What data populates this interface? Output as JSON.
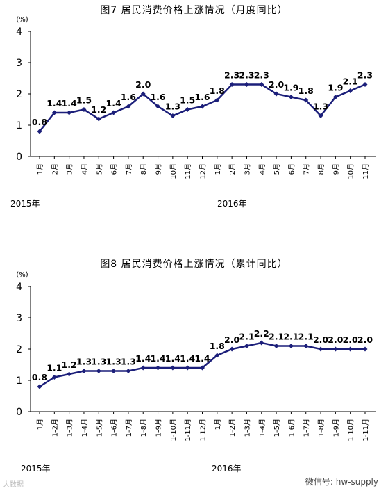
{
  "chart_data": [
    {
      "type": "line",
      "title": "图7  居民消费价格上涨情况（月度同比）",
      "ylabel": "(%)",
      "ylim": [
        0,
        4
      ],
      "yticks": [
        "0",
        "1",
        "2",
        "3",
        "4"
      ],
      "grid": false,
      "categories": [
        "1月",
        "2月",
        "3月",
        "4月",
        "5月",
        "6月",
        "7月",
        "8月",
        "9月",
        "10月",
        "11月",
        "12月",
        "1月",
        "2月",
        "3月",
        "4月",
        "5月",
        "6月",
        "7月",
        "8月",
        "9月",
        "10月",
        "11月"
      ],
      "year_labels": [
        "2015年",
        "2016年"
      ],
      "series": [
        {
          "values": [
            0.8,
            1.4,
            1.4,
            1.5,
            1.2,
            1.4,
            1.6,
            2.0,
            1.6,
            1.3,
            1.5,
            1.6,
            1.8,
            2.3,
            2.3,
            2.3,
            2.0,
            1.9,
            1.8,
            1.3,
            1.9,
            2.1,
            2.3
          ],
          "labels": [
            "0.8",
            "1.4",
            "1.4",
            "1.5",
            "1.2",
            "1.4",
            "1.6",
            "2.0",
            "1.6",
            "1.3",
            "1.5",
            "1.6",
            "1.8",
            "2.3",
            "2.3",
            "2.3",
            "2.0",
            "1.9",
            "1.8",
            "1.3",
            "1.9",
            "2.1",
            "2.3"
          ]
        }
      ]
    },
    {
      "type": "line",
      "title": "图8  居民消费价格上涨情况（累计同比）",
      "ylabel": "(%)",
      "ylim": [
        0,
        4
      ],
      "yticks": [
        "0",
        "1",
        "2",
        "3",
        "4"
      ],
      "grid": false,
      "categories": [
        "1月",
        "1-2月",
        "1-3月",
        "1-4月",
        "1-5月",
        "1-6月",
        "1-7月",
        "1-8月",
        "1-9月",
        "1-10月",
        "1-11月",
        "1-12月",
        "1月",
        "1-2月",
        "1-3月",
        "1-4月",
        "1-5月",
        "1-6月",
        "1-7月",
        "1-8月",
        "1-9月",
        "1-10月",
        "1-11月"
      ],
      "year_labels": [
        "2015年",
        "2016年"
      ],
      "series": [
        {
          "values": [
            0.8,
            1.1,
            1.2,
            1.3,
            1.3,
            1.3,
            1.3,
            1.4,
            1.4,
            1.4,
            1.4,
            1.4,
            1.8,
            2.0,
            2.1,
            2.2,
            2.1,
            2.1,
            2.1,
            2.0,
            2.0,
            2.0,
            2.0
          ],
          "labels": [
            "0.8",
            "1.1",
            "1.2",
            "1.3",
            "1.3",
            "1.3",
            "1.3",
            "1.4",
            "1.4",
            "1.4",
            "1.4",
            "1.4",
            "1.8",
            "2.0",
            "2.1",
            "2.2",
            "2.1",
            "2.1",
            "2.1",
            "2.0",
            "2.0",
            "2.0",
            "2.0"
          ]
        }
      ]
    }
  ],
  "colors": {
    "line": "#1c1f7a",
    "axis": "#000000"
  },
  "watermark": {
    "right": "微信号: hw-supply",
    "left": "大数据"
  }
}
